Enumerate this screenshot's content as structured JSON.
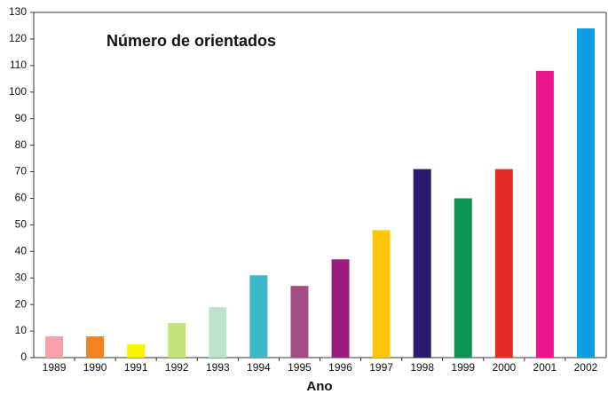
{
  "chart_data": {
    "type": "bar",
    "title": "Número de orientados",
    "x_label": "Ano",
    "categories": [
      "1989",
      "1990",
      "1991",
      "1992",
      "1993",
      "1994",
      "1995",
      "1996",
      "1997",
      "1998",
      "1999",
      "2000",
      "2001",
      "2002"
    ],
    "values": [
      8,
      8,
      5,
      13,
      19,
      31,
      27,
      37,
      48,
      71,
      60,
      71,
      108,
      124
    ],
    "colors": [
      "#f7a1a6",
      "#f28222",
      "#f9f200",
      "#c3e27a",
      "#bde3cf",
      "#3bb8c9",
      "#a24d84",
      "#9b1a7d",
      "#fdc60a",
      "#2b1a6e",
      "#0c9450",
      "#e32a27",
      "#eb178a",
      "#0f9de2"
    ],
    "ylim": [
      0,
      130
    ],
    "yticks": [
      0,
      10,
      20,
      30,
      40,
      50,
      60,
      70,
      80,
      90,
      100,
      110,
      120,
      130
    ],
    "grid": false
  }
}
